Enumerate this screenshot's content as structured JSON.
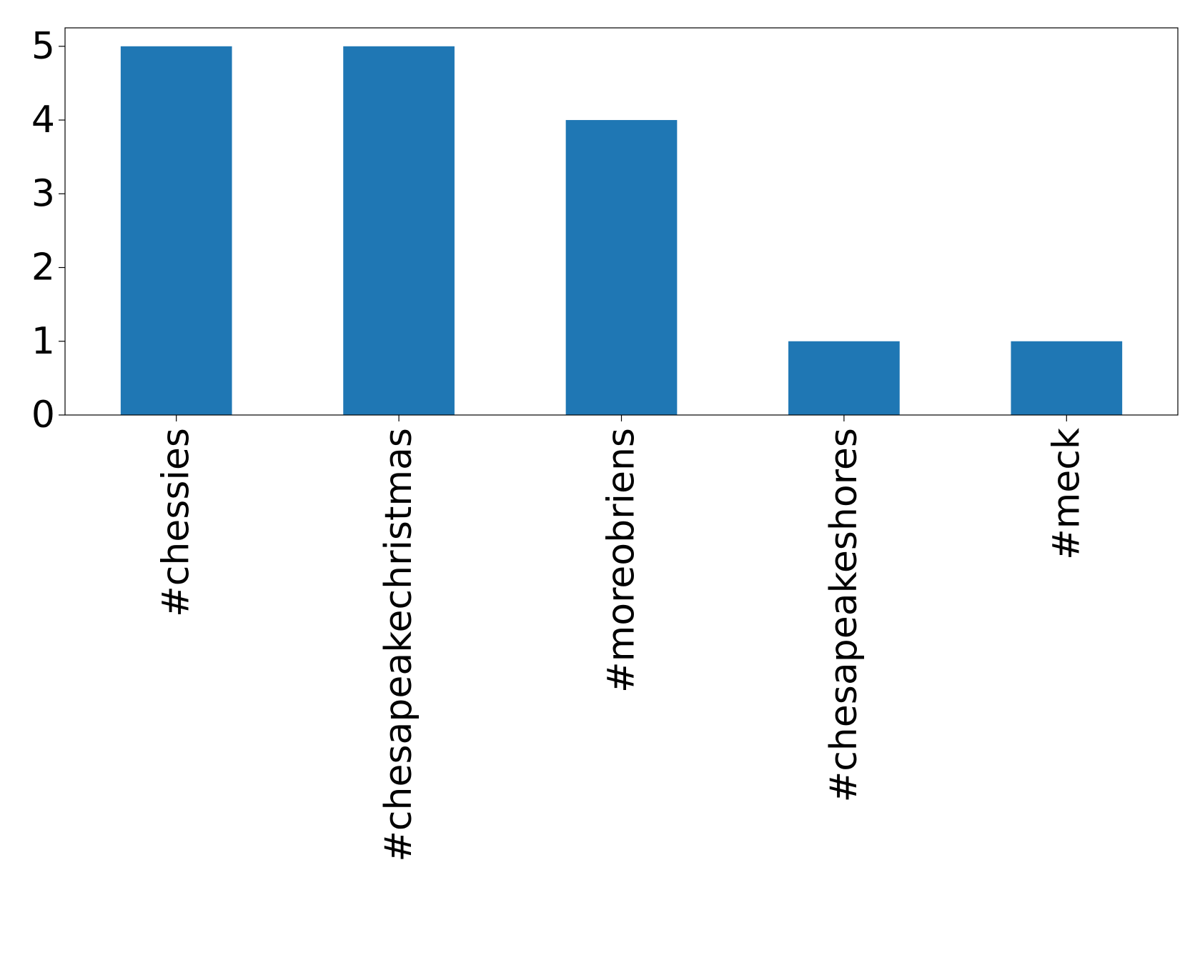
{
  "chart_data": {
    "type": "bar",
    "title": "",
    "xlabel": "",
    "ylabel": "",
    "categories": [
      "#chessies",
      "#chesapeakechristmas",
      "#moreobriens",
      "#chesapeakeshores",
      "#meck"
    ],
    "values": [
      5,
      5,
      4,
      1,
      1
    ],
    "ylim": [
      0,
      5.25
    ],
    "yticks": [
      "0",
      "1",
      "2",
      "3",
      "4",
      "5"
    ],
    "grid": false,
    "legend": "none",
    "bar_color": "#1f77b4"
  }
}
